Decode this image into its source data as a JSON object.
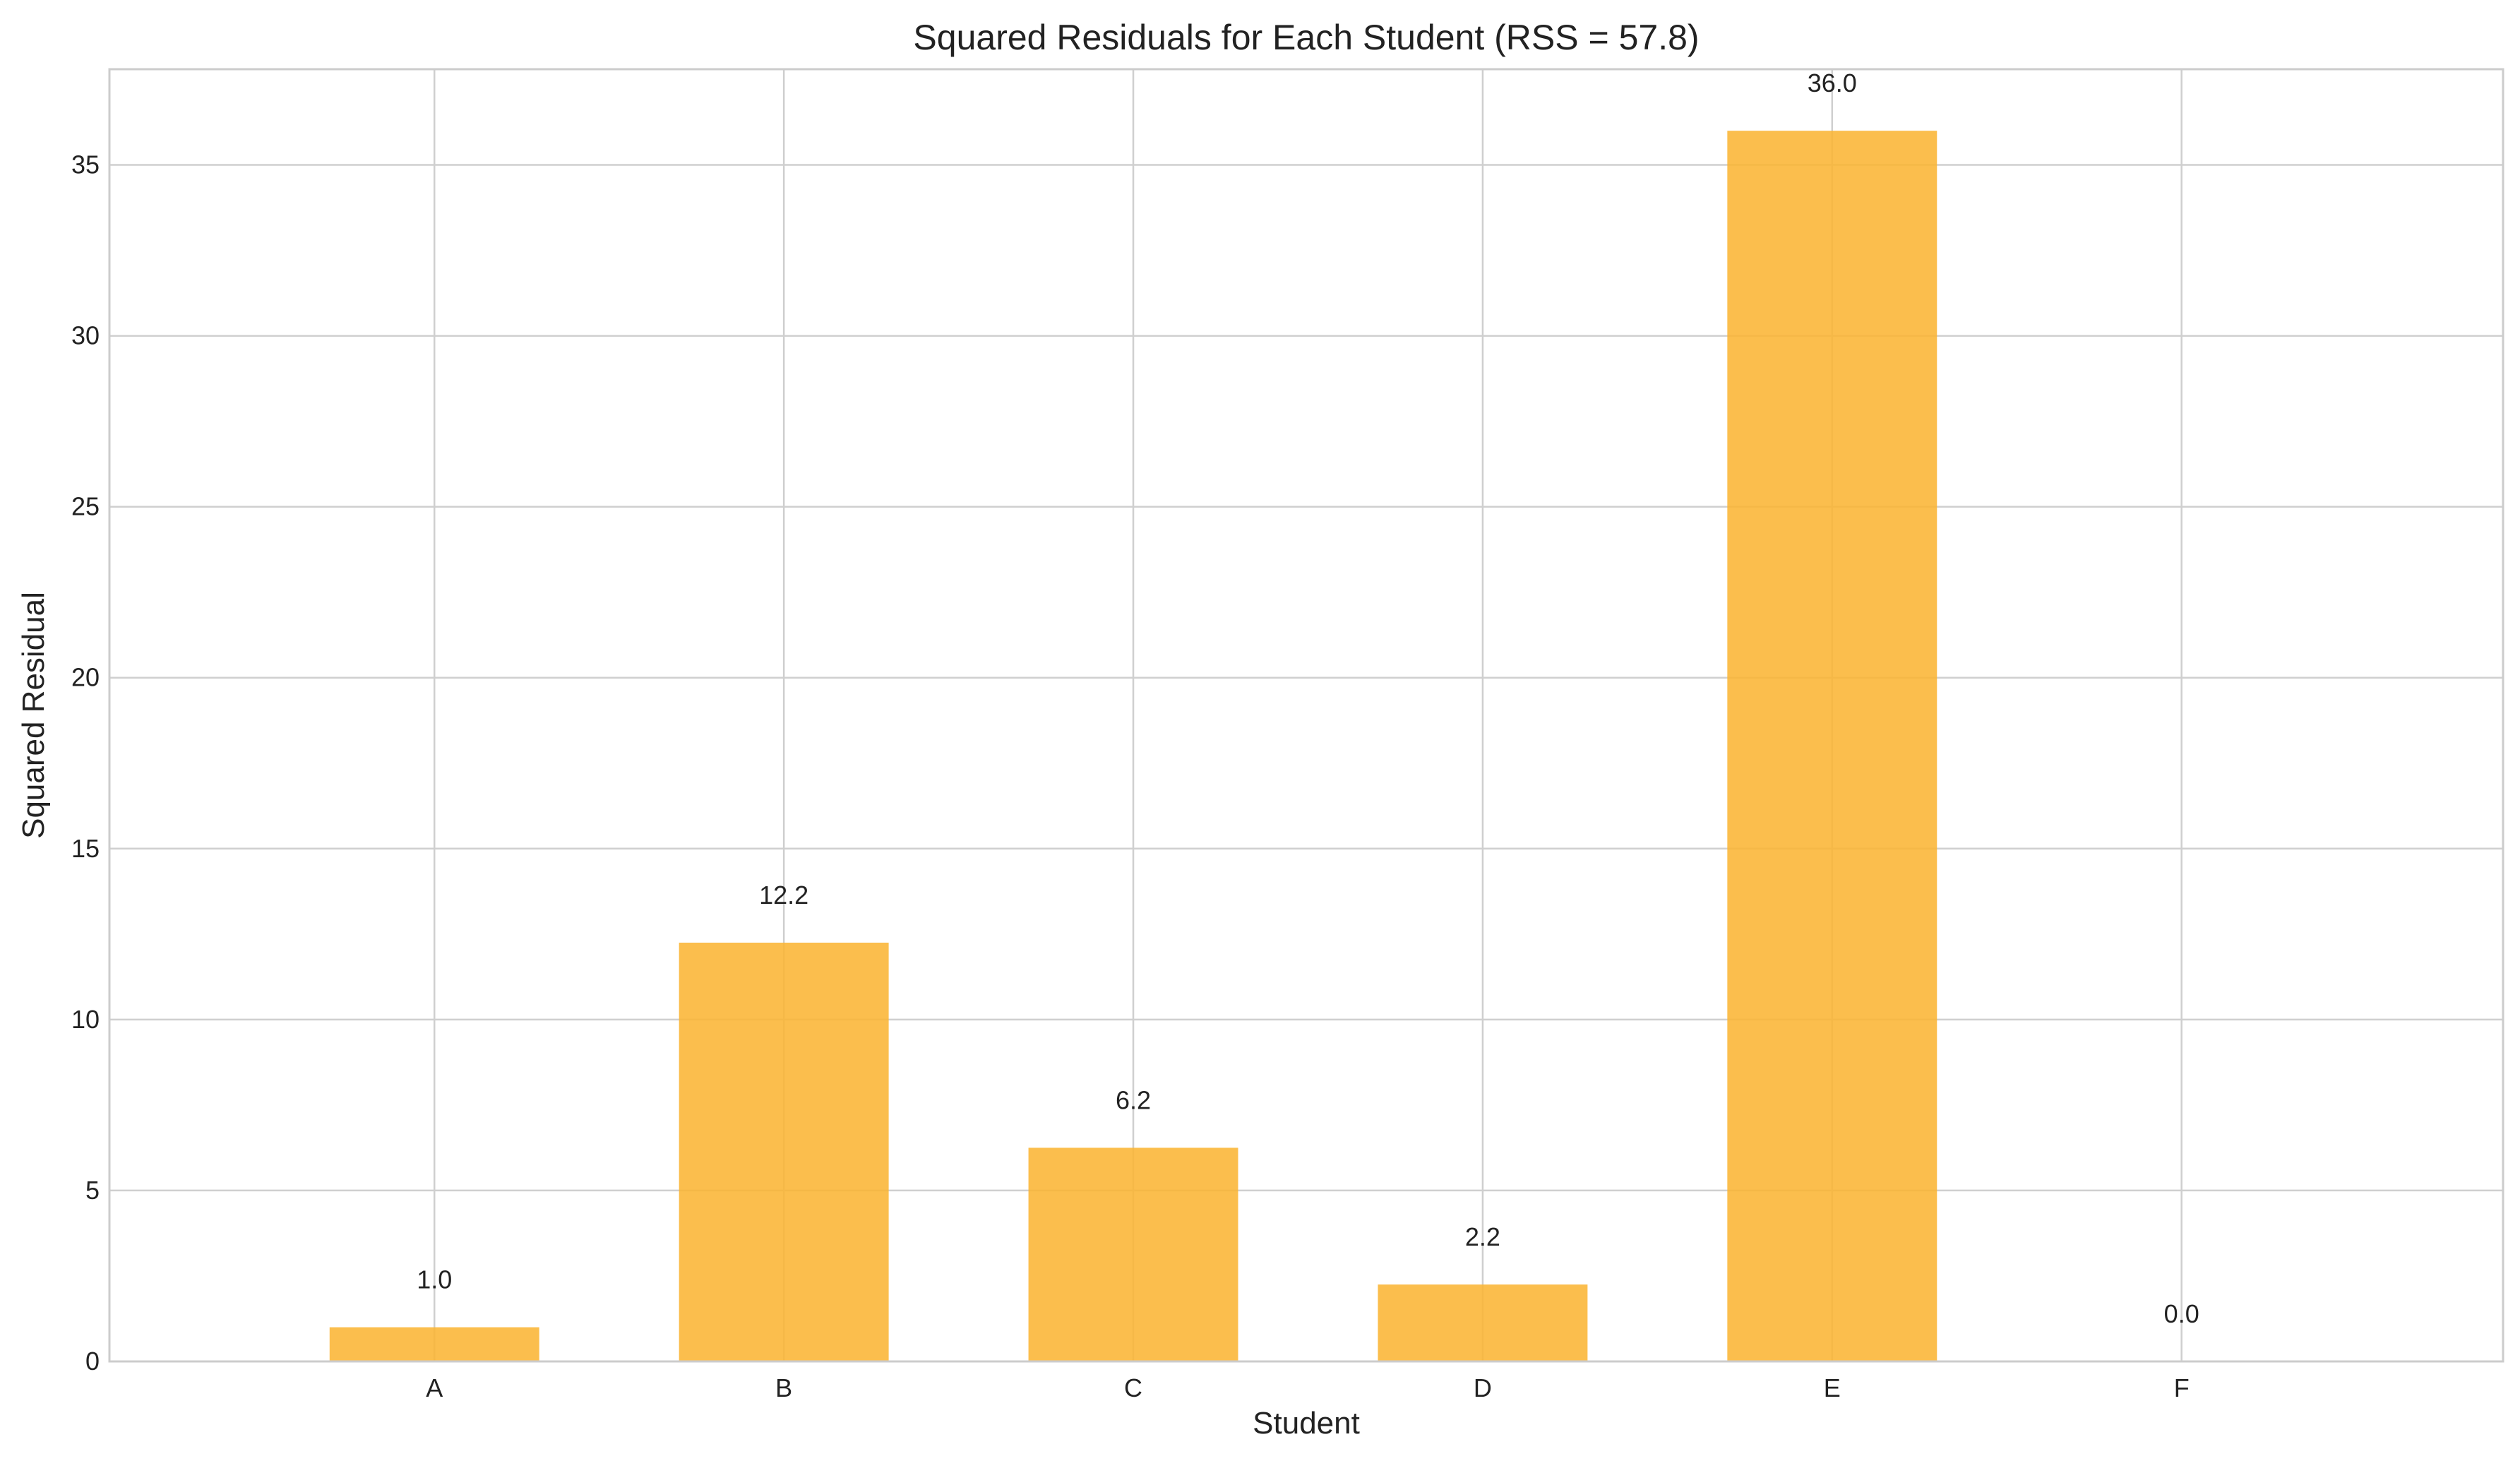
{
  "chart_data": {
    "type": "bar",
    "title": "Squared Residuals for Each Student (RSS = 57.8)",
    "xlabel": "Student",
    "ylabel": "Squared Residual",
    "categories": [
      "A",
      "B",
      "C",
      "D",
      "E",
      "F"
    ],
    "values": [
      1.0,
      12.25,
      6.25,
      2.25,
      36.0,
      0.0
    ],
    "data_labels": [
      "1.0",
      "12.2",
      "6.2",
      "2.2",
      "36.0",
      "0.0"
    ],
    "ylim": [
      0,
      37.8
    ],
    "yticks": [
      0,
      5,
      10,
      15,
      20,
      25,
      30,
      35
    ],
    "ytick_labels": [
      "0",
      "5",
      "10",
      "15",
      "20",
      "25",
      "30",
      "35"
    ],
    "grid": true,
    "bar_color": "#fbb534"
  }
}
